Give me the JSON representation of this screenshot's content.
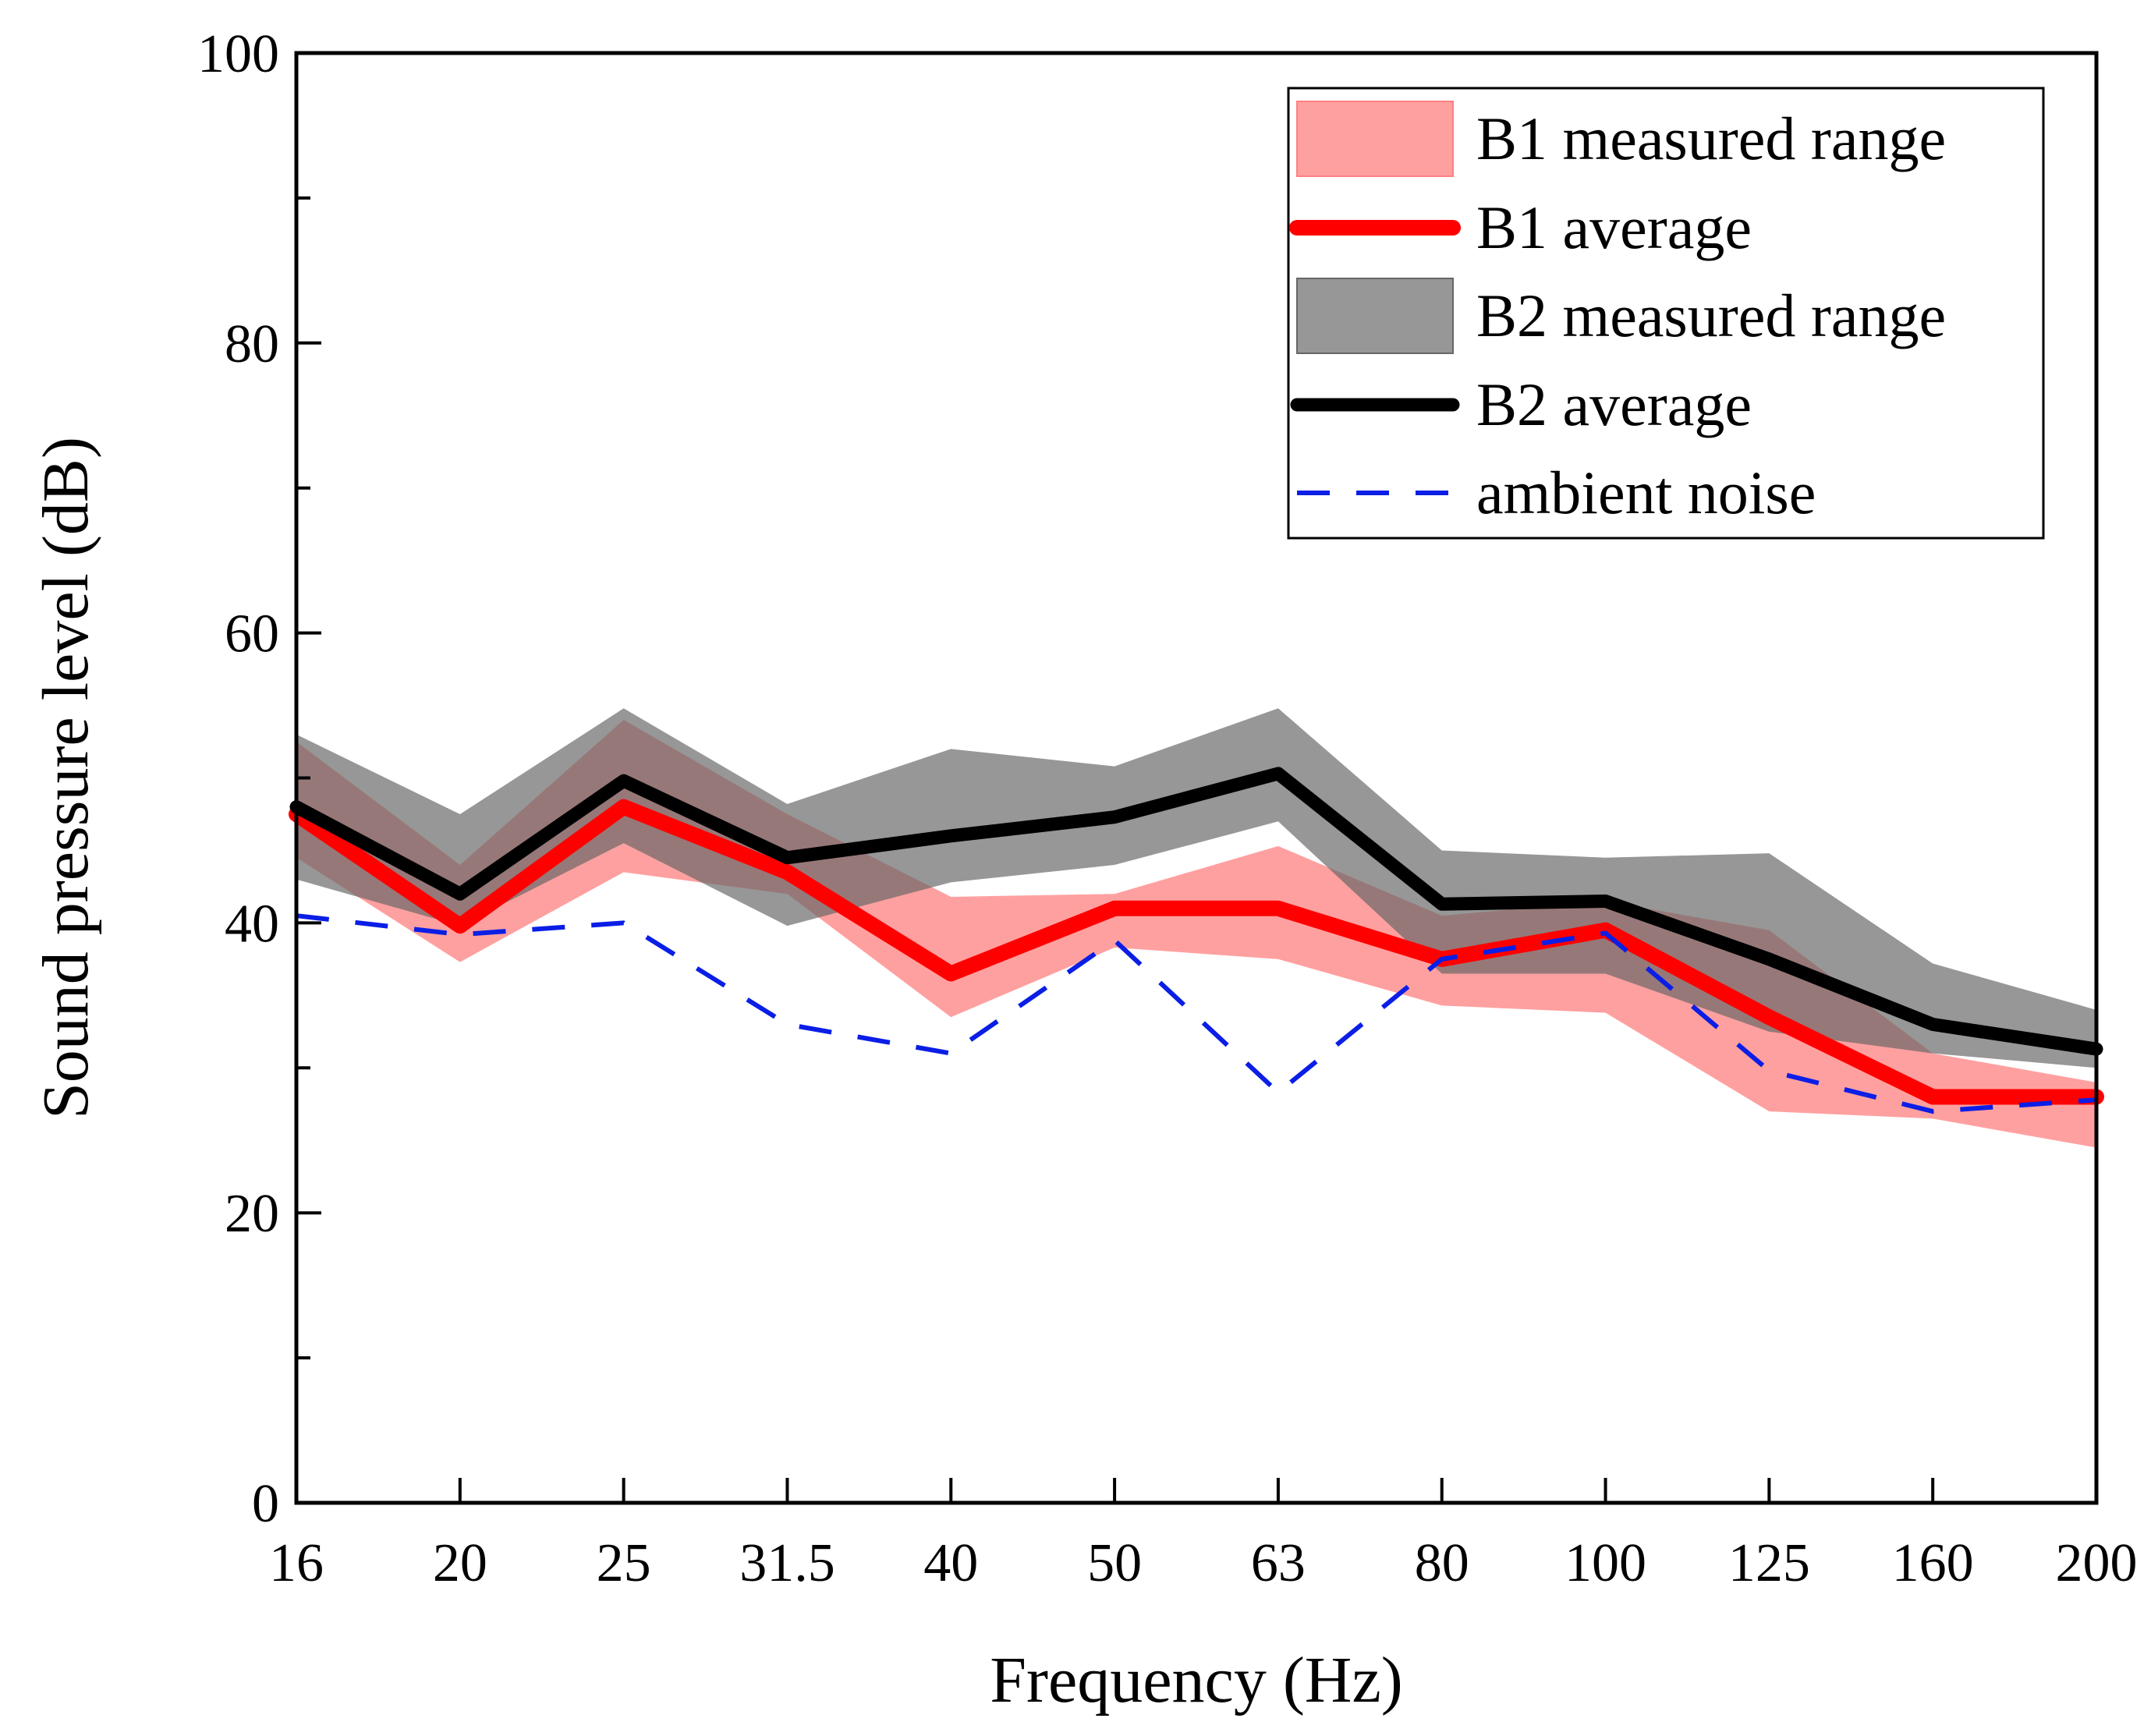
{
  "chart_data": {
    "type": "line",
    "title": "",
    "xlabel": "Frequency (Hz)",
    "ylabel": "Sound pressure level (dB)",
    "categories": [
      "16",
      "20",
      "25",
      "31.5",
      "40",
      "50",
      "63",
      "80",
      "100",
      "125",
      "160",
      "200"
    ],
    "ylim": [
      0,
      100
    ],
    "yticks": [
      0,
      20,
      40,
      60,
      80,
      100
    ],
    "yticks_labels": [
      "0",
      "20",
      "40",
      "60",
      "80",
      "100"
    ],
    "grid": false,
    "legend_position": "top-right",
    "colors": {
      "b1_band": "#ff8080",
      "b1_line": "#ff0000",
      "b2_band": "#666666",
      "b2_line": "#000000",
      "ambient": "#0a1ee6"
    },
    "bands": [
      {
        "name": "B1 measured range",
        "lower": [
          44.5,
          37.3,
          43.5,
          42.0,
          33.5,
          38.3,
          37.5,
          34.3,
          33.8,
          27.0,
          26.5,
          24.5
        ],
        "upper": [
          52.5,
          44.0,
          54.0,
          47.5,
          41.8,
          42.0,
          45.3,
          40.5,
          41.5,
          39.5,
          31.0,
          29.0
        ]
      },
      {
        "name": "B2 measured range",
        "lower": [
          43.0,
          39.8,
          45.5,
          39.8,
          42.8,
          44.0,
          47.0,
          36.5,
          36.5,
          32.5,
          31.0,
          30.0
        ],
        "upper": [
          53.0,
          47.5,
          54.8,
          48.2,
          52.0,
          50.8,
          54.8,
          45.0,
          44.5,
          44.8,
          37.2,
          34.0
        ]
      }
    ],
    "series": [
      {
        "name": "B1 average",
        "values": [
          47.5,
          39.8,
          48.0,
          43.5,
          36.5,
          41.0,
          41.0,
          37.5,
          39.5,
          33.5,
          28.0,
          28.0
        ]
      },
      {
        "name": "B2 average",
        "values": [
          48.0,
          42.0,
          49.8,
          44.5,
          46.0,
          47.3,
          50.3,
          41.3,
          41.5,
          37.5,
          33.0,
          31.3
        ]
      },
      {
        "name": "ambient noise",
        "values": [
          40.5,
          39.2,
          40.0,
          33.0,
          31.0,
          38.8,
          28.3,
          37.5,
          39.3,
          29.8,
          27.0,
          27.8
        ]
      }
    ],
    "legend": [
      "B1 measured range",
      "B1 average",
      "B2 measured range",
      "B2 average",
      "ambient noise"
    ]
  }
}
